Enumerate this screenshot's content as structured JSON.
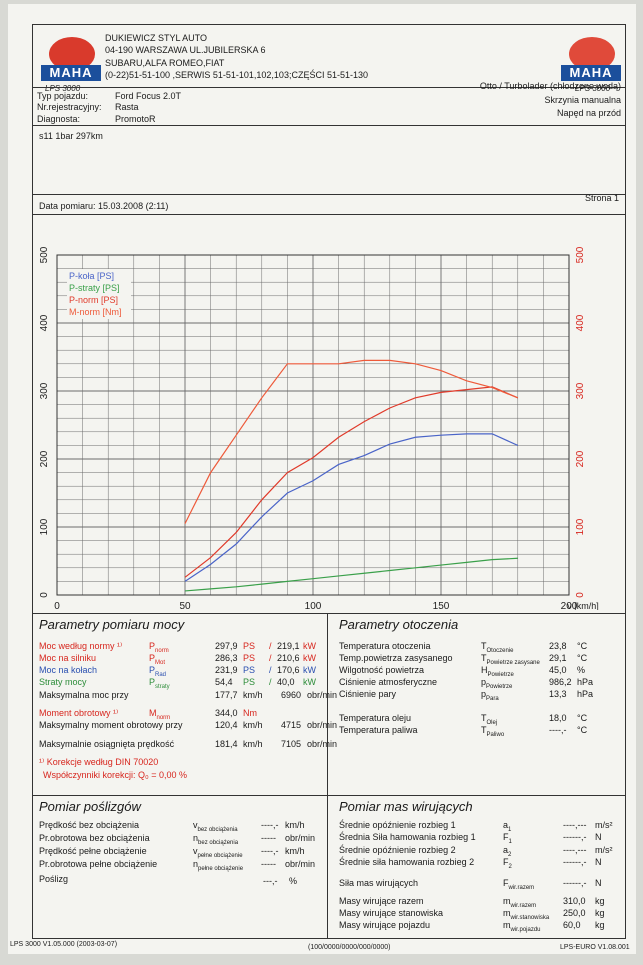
{
  "company": {
    "name": "DUKIEWICZ STYL AUTO",
    "address": "04-190 WARSZAWA UL.JUBILERSKA 6",
    "brands": "SUBARU,ALFA ROMEO,FIAT",
    "phones": "(0-22)51-51-100 ,SERWIS 51-51-101,102,103;CZĘŚCI 51-51-130",
    "logo_caption_left": "LPS 3000",
    "logo_caption_right": "LPS 3000",
    "logo_text": "MAHA"
  },
  "vehicle": {
    "type_label": "Typ pojazdu:",
    "type_value": "Ford Focus 2.0T",
    "reg_label": "Nr.rejestracyjny:",
    "reg_value": "Rasta",
    "diag_label": "Diagnosta:",
    "diag_value": "PromotoR",
    "engine": "Otto / Turbolader (chłodzone wodą)",
    "gearbox": "Skrzynia manualna",
    "drive": "Napęd na przód",
    "comment": "s11 1bar 297km"
  },
  "measurement": {
    "date": "Data pomiaru: 15.03.2008 (2:11)",
    "page": "Strona 1"
  },
  "chart_data": {
    "type": "line",
    "x": [
      50,
      60,
      70,
      80,
      90,
      100,
      110,
      120,
      130,
      140,
      150,
      160,
      170,
      180
    ],
    "xlabel": "v [km/h]",
    "xlim": [
      0,
      200
    ],
    "x_ticks": [
      0,
      50,
      100,
      150,
      200
    ],
    "ylim": [
      0,
      500
    ],
    "y_ticks": [
      0,
      100,
      200,
      300,
      400,
      500
    ],
    "grid": true,
    "legend_position": "top-left",
    "series": [
      {
        "name": "P-koła [PS]",
        "color": "#4a64c8",
        "axis": "left",
        "values": [
          20,
          45,
          75,
          115,
          150,
          168,
          192,
          205,
          222,
          232,
          235,
          237,
          237,
          220
        ]
      },
      {
        "name": "P-straty [PS]",
        "color": "#3aa04a",
        "axis": "left",
        "values": [
          6,
          9,
          12,
          16,
          20,
          24,
          28,
          32,
          36,
          40,
          44,
          48,
          52,
          54
        ]
      },
      {
        "name": "P-norm [PS]",
        "color": "#e03a2a",
        "axis": "left",
        "values": [
          26,
          55,
          92,
          140,
          180,
          202,
          232,
          255,
          275,
          290,
          298,
          302,
          306,
          290
        ]
      },
      {
        "name": "M-norm [Nm]",
        "color": "#ee5a3a",
        "axis": "right",
        "values": [
          105,
          180,
          235,
          290,
          340,
          340,
          340,
          345,
          345,
          340,
          330,
          315,
          305,
          290
        ]
      }
    ]
  },
  "power": {
    "title": "Parametry pomiaru mocy",
    "rows": [
      {
        "label": "Moc według normy ¹⁾",
        "sym": "P",
        "sub": "norm",
        "v1": "297,9",
        "u1": "PS",
        "v2": "219,1",
        "u2": "kW",
        "color": "#d7261e"
      },
      {
        "label": "Moc na silniku",
        "sym": "P",
        "sub": "Mot",
        "v1": "286,3",
        "u1": "PS",
        "v2": "210,6",
        "u2": "kW",
        "color": "#d7261e"
      },
      {
        "label": "Moc na kołach",
        "sym": "P",
        "sub": "Rad",
        "v1": "231,9",
        "u1": "PS",
        "v2": "170,6",
        "u2": "kW",
        "color": "#2a4fb0"
      },
      {
        "label": "Straty mocy",
        "sym": "P",
        "sub": "straty",
        "v1": "54,4",
        "u1": "PS",
        "v2": "40,0",
        "u2": "kW",
        "color": "#2d8d3a"
      }
    ],
    "max_power_label": "Maksymalna moc przy",
    "max_power_v": "177,7",
    "max_power_vu": "km/h",
    "max_power_rpm": "6960",
    "max_power_rpmu": "obr/min",
    "torque_label": "Moment obrotowy ¹⁾",
    "torque_sym": "M",
    "torque_sub": "norm",
    "torque_value": "344,0",
    "torque_unit": "Nm",
    "max_torque_label": "Maksymalny moment obrotowy przy",
    "max_torque_v": "120,4",
    "max_torque_vu": "km/h",
    "max_torque_rpm": "4715",
    "max_torque_rpmu": "obr/min",
    "max_speed_label": "Maksymalnie osiągnięta prędkość",
    "max_speed_v": "181,4",
    "max_speed_vu": "km/h",
    "max_speed_rpm": "7105",
    "max_speed_rpmu": "obr/min",
    "correction": "¹⁾ Korekcje według DIN 70020",
    "correction_coef": "Współczynniki korekcji: Q₀ =   0,00 %"
  },
  "environment": {
    "title": "Parametry otoczenia",
    "rows": [
      {
        "label": "Temperatura otoczenia",
        "sym": "T",
        "sub": "Otoczenie",
        "value": "23,8",
        "unit": "°C"
      },
      {
        "label": "Temp.powietrza zasysanego",
        "sym": "T",
        "sub": "Powietrze zasysane",
        "value": "29,1",
        "unit": "°C"
      },
      {
        "label": "Wilgotność powietrza",
        "sym": "H",
        "sub": "Powietrze",
        "value": "45,0",
        "unit": "%"
      },
      {
        "label": "Ciśnienie atmosferyczne",
        "sym": "p",
        "sub": "Powietrze",
        "value": "986,2",
        "unit": "hPa"
      },
      {
        "label": "Ciśnienie pary",
        "sym": "p",
        "sub": "Para",
        "value": "13,3",
        "unit": "hPa"
      },
      {
        "label": "Temperatura oleju",
        "sym": "T",
        "sub": "Olej",
        "value": "18,0",
        "unit": "°C"
      },
      {
        "label": "Temperatura paliwa",
        "sym": "T",
        "sub": "Paliwo",
        "value": "----,-",
        "unit": "°C"
      }
    ]
  },
  "slip": {
    "title": "Pomiar poślizgów",
    "rows": [
      {
        "label": "Prędkość bez obciążenia",
        "sym": "v",
        "sub": "bez obciążenia",
        "value": "----,-",
        "unit": "km/h"
      },
      {
        "label": "Pr.obrotowa bez obciążenia",
        "sym": "n",
        "sub": "bez obciążenia",
        "value": "-----",
        "unit": "obr/min"
      },
      {
        "label": "Prędkość pełne obciążenie",
        "sym": "v",
        "sub": "pełne obciążenie",
        "value": "----,-",
        "unit": "km/h"
      },
      {
        "label": "Pr.obrotowa pełne obciążenie",
        "sym": "n",
        "sub": "pełne obciążenie",
        "value": "-----",
        "unit": "obr/min"
      }
    ],
    "slip_label": "Poślizg",
    "slip_value": "---,-",
    "slip_unit": "%"
  },
  "inertia": {
    "title": "Pomiar mas wirujących",
    "rows": [
      {
        "label": "Średnie opóźnienie rozbieg 1",
        "sym": "a",
        "sub": "1",
        "value": "----,---",
        "unit": "m/s²"
      },
      {
        "label": "Średnia Siła hamowania rozbieg 1",
        "sym": "F",
        "sub": "1",
        "value": "------,-",
        "unit": "N"
      },
      {
        "label": "Średnie opóźnienie rozbieg 2",
        "sym": "a",
        "sub": "2",
        "value": "----,---",
        "unit": "m/s²"
      },
      {
        "label": "Średnie siła hamowania rozbieg 2",
        "sym": "F",
        "sub": "2",
        "value": "------,-",
        "unit": "N"
      },
      {
        "label": "Siła mas wirujących",
        "sym": "F",
        "sub": "wir.razem",
        "value": "------,-",
        "unit": "N"
      },
      {
        "label": "Masy wirujące razem",
        "sym": "m",
        "sub": "wir.razem",
        "value": "310,0",
        "unit": "kg"
      },
      {
        "label": "Masy wirujące stanowiska",
        "sym": "m",
        "sub": "wir.stanowiska",
        "value": "250,0",
        "unit": "kg"
      },
      {
        "label": "Masy wirujące pojazdu",
        "sym": "m",
        "sub": "wir.pojazdu",
        "value": "60,0",
        "unit": "kg"
      }
    ]
  },
  "footer": {
    "left": "LPS 3000 V1.05.000 (2003-03-07)",
    "center": "(100/0000/0000/000/0000)",
    "right": "LPS-EURO V1.08.001"
  }
}
